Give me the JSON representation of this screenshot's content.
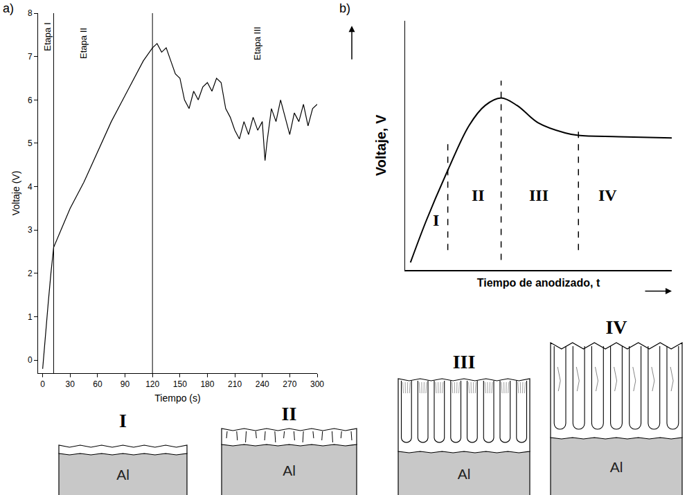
{
  "chart_data": [
    {
      "panel_label": "a)",
      "type": "line",
      "x_label": "Tiempo (s)",
      "y_label": "Voltaje (V)",
      "x": [
        0,
        3,
        6,
        9,
        12,
        20,
        30,
        45,
        60,
        75,
        90,
        100,
        110,
        120,
        125,
        130,
        135,
        140,
        145,
        150,
        155,
        160,
        165,
        170,
        175,
        180,
        185,
        190,
        195,
        200,
        205,
        210,
        215,
        220,
        225,
        230,
        235,
        240,
        243,
        245,
        250,
        255,
        260,
        265,
        270,
        275,
        280,
        285,
        290,
        295,
        300
      ],
      "values": [
        -0.2,
        0.6,
        1.3,
        2.0,
        2.6,
        3.0,
        3.5,
        4.1,
        4.8,
        5.5,
        6.1,
        6.5,
        6.9,
        7.2,
        7.3,
        7.1,
        7.2,
        6.9,
        6.6,
        6.5,
        6.0,
        5.8,
        6.2,
        6.0,
        6.3,
        6.4,
        6.2,
        6.5,
        6.4,
        5.8,
        5.6,
        5.3,
        5.1,
        5.5,
        5.2,
        5.6,
        5.3,
        5.5,
        4.6,
        5.0,
        5.8,
        5.5,
        6.0,
        5.6,
        5.2,
        5.7,
        5.5,
        5.9,
        5.4,
        5.8,
        5.9
      ],
      "color": "#000000",
      "xlim": [
        -5,
        300
      ],
      "xticks": [
        0,
        30,
        60,
        90,
        120,
        150,
        180,
        210,
        240,
        270,
        300
      ],
      "ylim": [
        -0.3,
        8
      ],
      "yticks": [
        0,
        1,
        2,
        3,
        4,
        5,
        6,
        7,
        8
      ],
      "grid": false,
      "stage_boundaries": [
        12,
        120
      ],
      "annotations": [
        {
          "text": "Etapa I",
          "x": 5,
          "y": 7.45
        },
        {
          "text": "Etapa II",
          "x": 45,
          "y": 7.3
        },
        {
          "text": "Etapa III",
          "x": 235,
          "y": 7.3
        }
      ]
    },
    {
      "panel_label": "b)",
      "type": "line",
      "x_label": "Tiempo de anodizado, t",
      "y_label": "Voltaje, V",
      "x": [
        0.2,
        0.8,
        1.6,
        2.4,
        3.0,
        3.6,
        4.2,
        5.0,
        6.0,
        6.5,
        8.0,
        10.0
      ],
      "values": [
        0.3,
        2.0,
        4.0,
        5.8,
        6.6,
        6.9,
        6.6,
        5.9,
        5.5,
        5.4,
        5.35,
        5.3
      ],
      "color": "#000000",
      "xlim": [
        0,
        10
      ],
      "ylim": [
        0,
        10
      ],
      "xticks": [],
      "yticks": [],
      "tick_labels": false,
      "grid": false,
      "dividers": [
        {
          "x": 1.6,
          "y": [
            0.8,
            5.3
          ]
        },
        {
          "x": 3.6,
          "y": [
            0.4,
            7.6
          ]
        },
        {
          "x": 6.5,
          "y": [
            0.8,
            5.6
          ]
        }
      ],
      "annotations": [
        {
          "text": "I",
          "x": 1.15,
          "y": 2.0
        },
        {
          "text": "II",
          "x": 2.75,
          "y": 3.0
        },
        {
          "text": "III",
          "x": 5.0,
          "y": 3.0
        },
        {
          "text": "IV",
          "x": 7.6,
          "y": 3.0
        }
      ]
    }
  ],
  "diagrams": [
    {
      "label": "I",
      "substrate": "Al"
    },
    {
      "label": "II",
      "substrate": "Al"
    },
    {
      "label": "III",
      "substrate": "Al"
    },
    {
      "label": "IV",
      "substrate": "Al"
    }
  ]
}
